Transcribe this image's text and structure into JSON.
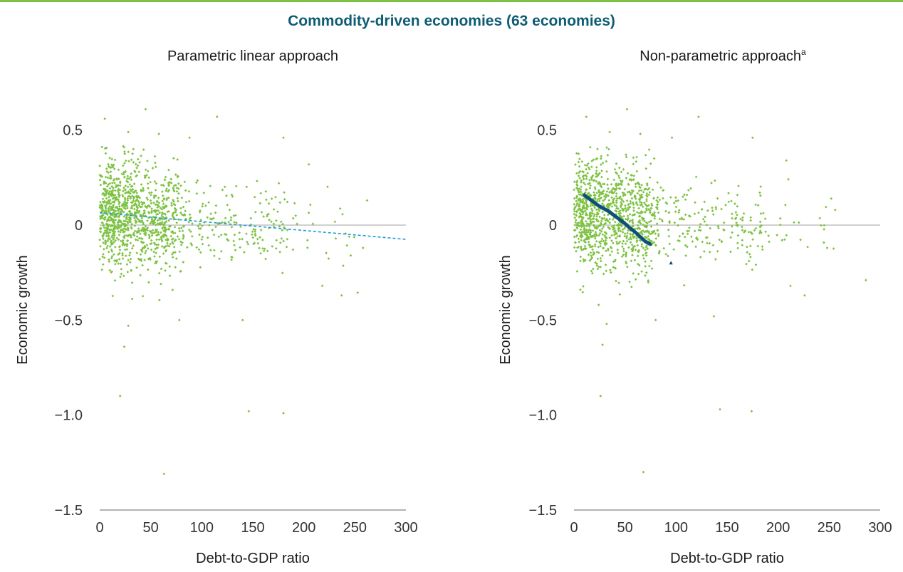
{
  "figure": {
    "title": "Commodity-driven economies (63 economies)"
  },
  "colors": {
    "accent_rule": "#7dc242",
    "title": "#0e5c73",
    "scatter": "#7dc242",
    "linear_fit": "#1e9ad6",
    "nonparametric_fit": "#0d4f7a",
    "zero_line": "#a0a0a0",
    "axis": "#666666"
  },
  "chart_data": [
    {
      "type": "scatter",
      "title": "Parametric linear approach",
      "xlabel": "Debt-to-GDP ratio",
      "ylabel": "Economic growth",
      "xlim": [
        0,
        300
      ],
      "ylim": [
        -1.5,
        0.6
      ],
      "xticks": [
        "0",
        "50",
        "100",
        "150",
        "200",
        "250",
        "300"
      ],
      "yticks": [
        {
          "v": 0.5,
          "label": "0.5"
        },
        {
          "v": 0,
          "label": "0"
        },
        {
          "v": -0.5,
          "label": "−0.5"
        },
        {
          "v": -1.0,
          "label": "−1.0"
        },
        {
          "v": -1.5,
          "label": "−1.5"
        }
      ],
      "zero_line": true,
      "fit": {
        "kind": "linear",
        "style": "dashed",
        "x": [
          0,
          300
        ],
        "y": [
          0.065,
          -0.075
        ]
      },
      "notable_points": [
        {
          "x": 5,
          "y": 0.56
        },
        {
          "x": 45,
          "y": 0.61
        },
        {
          "x": 115,
          "y": 0.57
        },
        {
          "x": 28,
          "y": 0.49
        },
        {
          "x": 58,
          "y": 0.48
        },
        {
          "x": 88,
          "y": 0.46
        },
        {
          "x": 180,
          "y": 0.46
        },
        {
          "x": 205,
          "y": 0.32
        },
        {
          "x": 262,
          "y": 0.13
        },
        {
          "x": 258,
          "y": -0.12
        },
        {
          "x": 237,
          "y": -0.37
        },
        {
          "x": 218,
          "y": -0.32
        },
        {
          "x": 140,
          "y": -0.5
        },
        {
          "x": 28,
          "y": -0.53
        },
        {
          "x": 24,
          "y": -0.64
        },
        {
          "x": 20,
          "y": -0.9
        },
        {
          "x": 146,
          "y": -0.98
        },
        {
          "x": 180,
          "y": -0.99
        },
        {
          "x": 63,
          "y": -1.31
        },
        {
          "x": 78,
          "y": -0.5
        }
      ]
    },
    {
      "type": "scatter",
      "title": "Non-parametric approach",
      "title_superscript": "a",
      "xlabel": "Debt-to-GDP ratio",
      "ylabel": "Economic growth",
      "xlim": [
        0,
        300
      ],
      "ylim": [
        -1.5,
        0.6
      ],
      "xticks": [
        "0",
        "50",
        "100",
        "150",
        "200",
        "250",
        "300"
      ],
      "yticks": [
        {
          "v": 0.5,
          "label": "0.5"
        },
        {
          "v": 0,
          "label": "0"
        },
        {
          "v": -0.5,
          "label": "−0.5"
        },
        {
          "v": -1.0,
          "label": "−1.0"
        },
        {
          "v": -1.5,
          "label": "−1.5"
        }
      ],
      "zero_line": true,
      "fit": {
        "kind": "nonparametric",
        "style": "markers",
        "x": [
          10,
          15,
          20,
          25,
          30,
          35,
          40,
          45,
          50,
          55,
          60,
          65,
          70,
          75,
          95
        ],
        "y": [
          0.16,
          0.14,
          0.12,
          0.1,
          0.085,
          0.07,
          0.05,
          0.03,
          0.01,
          -0.015,
          -0.035,
          -0.06,
          -0.085,
          -0.1,
          -0.2
        ]
      },
      "notable_points": [
        {
          "x": 12,
          "y": 0.57
        },
        {
          "x": 52,
          "y": 0.61
        },
        {
          "x": 122,
          "y": 0.57
        },
        {
          "x": 35,
          "y": 0.49
        },
        {
          "x": 65,
          "y": 0.48
        },
        {
          "x": 96,
          "y": 0.46
        },
        {
          "x": 175,
          "y": 0.46
        },
        {
          "x": 208,
          "y": 0.34
        },
        {
          "x": 252,
          "y": 0.14
        },
        {
          "x": 248,
          "y": -0.12
        },
        {
          "x": 226,
          "y": -0.37
        },
        {
          "x": 212,
          "y": -0.32
        },
        {
          "x": 137,
          "y": -0.48
        },
        {
          "x": 32,
          "y": -0.52
        },
        {
          "x": 28,
          "y": -0.63
        },
        {
          "x": 26,
          "y": -0.9
        },
        {
          "x": 143,
          "y": -0.97
        },
        {
          "x": 174,
          "y": -0.98
        },
        {
          "x": 68,
          "y": -1.3
        },
        {
          "x": 80,
          "y": -0.5
        },
        {
          "x": 286,
          "y": -0.29
        }
      ]
    }
  ]
}
